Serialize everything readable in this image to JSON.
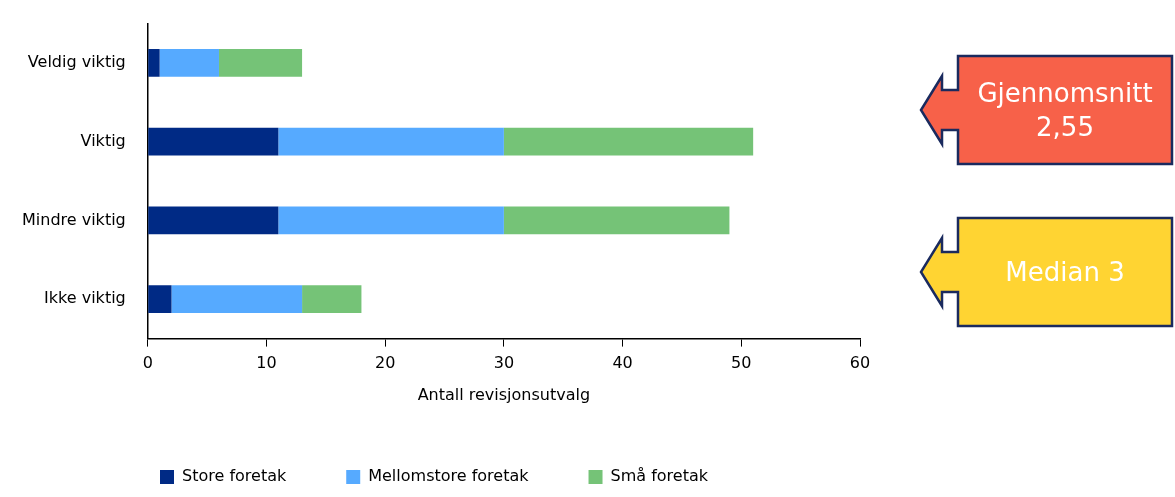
{
  "chart_data": {
    "type": "bar",
    "orientation": "horizontal",
    "stacked": true,
    "xlabel": "Antall revisjonsutvalg",
    "categories": [
      "Veldig viktig",
      "Viktig",
      "Mindre viktig",
      "Ikke viktig"
    ],
    "series": [
      {
        "name": "Store foretak",
        "color": "#002a85",
        "values": [
          1,
          11,
          11,
          2
        ]
      },
      {
        "name": "Mellomstore foretak",
        "color": "#56aaff",
        "values": [
          5,
          19,
          19,
          11
        ]
      },
      {
        "name": "Små foretak",
        "color": "#75c377",
        "values": [
          7,
          21,
          19,
          5
        ]
      }
    ],
    "xlim": [
      0,
      60
    ],
    "xticks": [
      0,
      10,
      20,
      30,
      40,
      50,
      60
    ],
    "grid": false,
    "legend": "bottom",
    "annotations": [
      "Gjennomsnitt 2,55",
      "Median 3"
    ]
  }
}
